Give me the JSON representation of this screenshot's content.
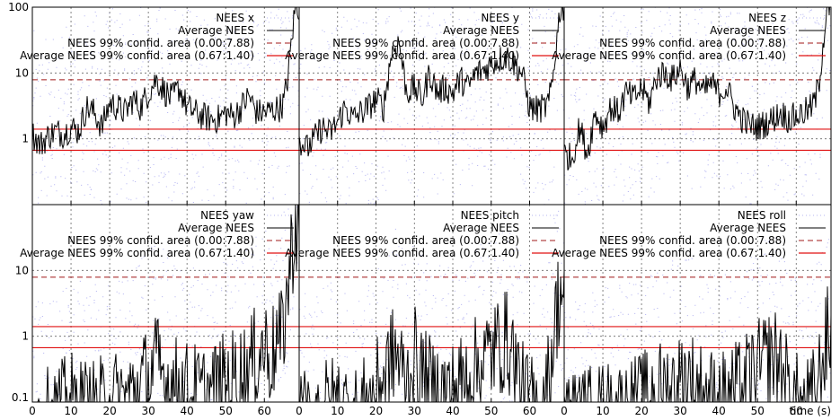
{
  "chart_data": {
    "type": "line",
    "y_scale": "log",
    "grid": true,
    "legend_placement": "top-right",
    "colors": {
      "samples": "#b6b6f2",
      "average": "#000000",
      "nees99": "#a01818",
      "avg99": "#e01010"
    },
    "x_axis": {
      "label": "time (s)",
      "ticks": [
        0,
        10,
        20,
        30,
        40,
        50,
        60
      ],
      "range": [
        0,
        69
      ]
    },
    "y_axis": {
      "ticks_top": [
        "100",
        "10",
        "1"
      ],
      "ticks_bottom": [
        "10",
        "1",
        "0.1"
      ],
      "range": [
        0.1,
        100
      ]
    },
    "legend_labels": {
      "average": "Average NEES",
      "nees99": "NEES 99% confid. area (0.00:7.88)",
      "avg99": "Average NEES 99% confid. area (0.67:1.40)"
    },
    "reference_lines": {
      "nees99_upper": 7.88,
      "avg99_lower": 0.67,
      "avg99_upper": 1.4
    },
    "panels": [
      {
        "name": "NEES x",
        "series_name": "NEES x",
        "average_points": [
          [
            0,
            1.2
          ],
          [
            2,
            0.8
          ],
          [
            4,
            1.1
          ],
          [
            6,
            1.3
          ],
          [
            8,
            1.2
          ],
          [
            10,
            1.5
          ],
          [
            12,
            1.3
          ],
          [
            14,
            3.0
          ],
          [
            16,
            2.5
          ],
          [
            18,
            1.5
          ],
          [
            20,
            3.5
          ],
          [
            22,
            3.0
          ],
          [
            24,
            2.5
          ],
          [
            26,
            4.0
          ],
          [
            28,
            3.0
          ],
          [
            30,
            5.0
          ],
          [
            32,
            8.0
          ],
          [
            34,
            5.5
          ],
          [
            36,
            4.0
          ],
          [
            38,
            6.0
          ],
          [
            40,
            3.0
          ],
          [
            42,
            2.5
          ],
          [
            44,
            2.2
          ],
          [
            46,
            2.0
          ],
          [
            48,
            2.0
          ],
          [
            50,
            2.5
          ],
          [
            52,
            2.2
          ],
          [
            54,
            3.0
          ],
          [
            56,
            4.5
          ],
          [
            58,
            2.5
          ],
          [
            60,
            2.5
          ],
          [
            62,
            2.7
          ],
          [
            64,
            3.0
          ],
          [
            65,
            3.5
          ],
          [
            66,
            8.0
          ],
          [
            67,
            30
          ],
          [
            68,
            100
          ]
        ]
      },
      {
        "name": "NEES y",
        "series_name": "NEES y",
        "average_points": [
          [
            0,
            1.0
          ],
          [
            2,
            0.7
          ],
          [
            4,
            1.0
          ],
          [
            6,
            1.5
          ],
          [
            8,
            1.2
          ],
          [
            10,
            1.8
          ],
          [
            12,
            3.0
          ],
          [
            14,
            2.0
          ],
          [
            16,
            2.5
          ],
          [
            18,
            3.0
          ],
          [
            20,
            4.0
          ],
          [
            22,
            3.0
          ],
          [
            24,
            20
          ],
          [
            26,
            30
          ],
          [
            28,
            5.0
          ],
          [
            30,
            6.0
          ],
          [
            32,
            4.0
          ],
          [
            34,
            10
          ],
          [
            36,
            5.0
          ],
          [
            38,
            6.0
          ],
          [
            40,
            5.0
          ],
          [
            42,
            8.0
          ],
          [
            44,
            6.0
          ],
          [
            46,
            10
          ],
          [
            48,
            11
          ],
          [
            50,
            14
          ],
          [
            52,
            16
          ],
          [
            54,
            18
          ],
          [
            56,
            14
          ],
          [
            58,
            10
          ],
          [
            60,
            3.0
          ],
          [
            62,
            2.8
          ],
          [
            64,
            3.0
          ],
          [
            65,
            3.5
          ],
          [
            66,
            8.0
          ],
          [
            67,
            30
          ],
          [
            68,
            100
          ]
        ]
      },
      {
        "name": "NEES z",
        "series_name": "NEES z",
        "average_points": [
          [
            0,
            0.6
          ],
          [
            2,
            0.5
          ],
          [
            4,
            1.5
          ],
          [
            6,
            0.6
          ],
          [
            8,
            2.5
          ],
          [
            10,
            1.5
          ],
          [
            12,
            3.0
          ],
          [
            14,
            2.5
          ],
          [
            16,
            5.0
          ],
          [
            18,
            4.0
          ],
          [
            20,
            6.0
          ],
          [
            22,
            3.5
          ],
          [
            24,
            9.0
          ],
          [
            26,
            10
          ],
          [
            28,
            8.0
          ],
          [
            30,
            12
          ],
          [
            32,
            6.0
          ],
          [
            34,
            8.0
          ],
          [
            36,
            5.0
          ],
          [
            38,
            7.0
          ],
          [
            40,
            5.0
          ],
          [
            42,
            6.0
          ],
          [
            44,
            3.0
          ],
          [
            46,
            2.0
          ],
          [
            48,
            1.6
          ],
          [
            50,
            1.5
          ],
          [
            52,
            1.7
          ],
          [
            54,
            2.0
          ],
          [
            56,
            2.5
          ],
          [
            58,
            2.0
          ],
          [
            60,
            2.2
          ],
          [
            62,
            2.5
          ],
          [
            64,
            3.0
          ],
          [
            65,
            4.0
          ],
          [
            66,
            8.0
          ],
          [
            67,
            30
          ],
          [
            68,
            100
          ]
        ]
      },
      {
        "name": "NEES yaw",
        "series_name": "NEES yaw",
        "average_points": [
          [
            0,
            0.1
          ],
          [
            5,
            0.12
          ],
          [
            10,
            0.2
          ],
          [
            15,
            0.15
          ],
          [
            20,
            0.2
          ],
          [
            25,
            0.25
          ],
          [
            30,
            0.5
          ],
          [
            32,
            0.8
          ],
          [
            35,
            0.4
          ],
          [
            40,
            0.3
          ],
          [
            45,
            0.25
          ],
          [
            50,
            0.4
          ],
          [
            55,
            0.6
          ],
          [
            58,
            1.0
          ],
          [
            60,
            1.5
          ],
          [
            62,
            1.0
          ],
          [
            63,
            1.8
          ],
          [
            64,
            1.5
          ],
          [
            65,
            3.0
          ],
          [
            66,
            10
          ],
          [
            67,
            40
          ],
          [
            68,
            100
          ]
        ]
      },
      {
        "name": "NEES pitch",
        "series_name": "NEES pitch",
        "average_points": [
          [
            0,
            0.1
          ],
          [
            5,
            0.15
          ],
          [
            10,
            0.2
          ],
          [
            15,
            0.12
          ],
          [
            20,
            0.3
          ],
          [
            22,
            0.5
          ],
          [
            25,
            1.2
          ],
          [
            28,
            0.4
          ],
          [
            30,
            1.0
          ],
          [
            32,
            0.5
          ],
          [
            35,
            0.3
          ],
          [
            40,
            0.3
          ],
          [
            45,
            0.6
          ],
          [
            50,
            1.2
          ],
          [
            52,
            1.5
          ],
          [
            54,
            1.8
          ],
          [
            56,
            1.0
          ],
          [
            58,
            0.3
          ],
          [
            60,
            0.2
          ],
          [
            62,
            0.15
          ],
          [
            64,
            0.2
          ],
          [
            65,
            0.5
          ],
          [
            66,
            1.5
          ],
          [
            67,
            5.0
          ],
          [
            68,
            10
          ]
        ]
      },
      {
        "name": "NEES roll",
        "series_name": "NEES roll",
        "average_points": [
          [
            0,
            0.1
          ],
          [
            5,
            0.12
          ],
          [
            10,
            0.15
          ],
          [
            15,
            0.15
          ],
          [
            20,
            0.2
          ],
          [
            25,
            0.3
          ],
          [
            30,
            0.4
          ],
          [
            32,
            0.5
          ],
          [
            35,
            0.3
          ],
          [
            40,
            0.2
          ],
          [
            45,
            0.3
          ],
          [
            50,
            0.6
          ],
          [
            52,
            0.8
          ],
          [
            54,
            1.0
          ],
          [
            56,
            0.8
          ],
          [
            58,
            0.3
          ],
          [
            60,
            0.2
          ],
          [
            62,
            0.15
          ],
          [
            64,
            0.2
          ],
          [
            65,
            0.3
          ],
          [
            66,
            0.5
          ],
          [
            67,
            1.0
          ],
          [
            68,
            2.0
          ]
        ]
      }
    ]
  }
}
